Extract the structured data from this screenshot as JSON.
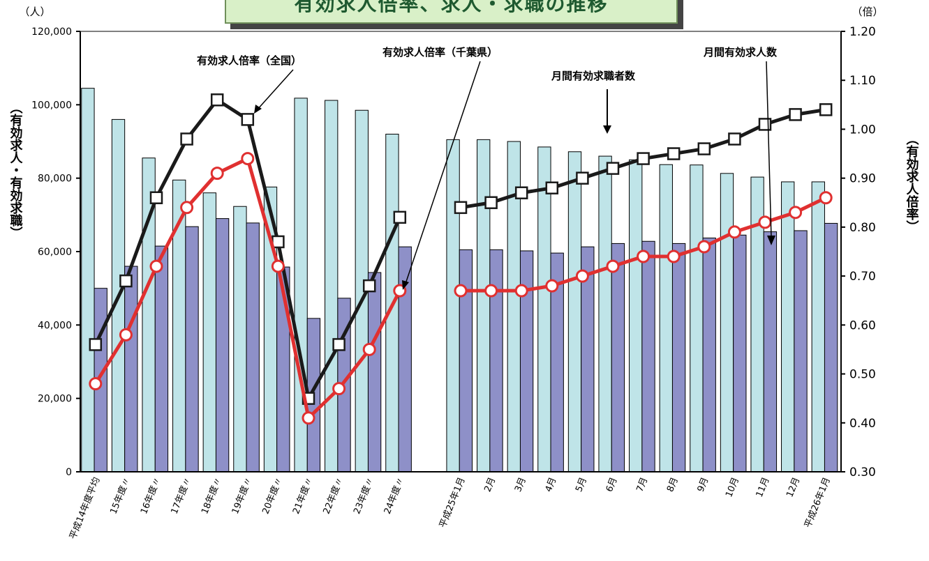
{
  "title": "有効求人倍率、求人・求職の推移",
  "left_unit": "（人）",
  "right_unit": "（倍）",
  "left_axis_title": "（有効求人・有効求職）",
  "right_axis_title": "（有効求人倍率）",
  "annotations": {
    "national": "有効求人倍率（全国）",
    "chiba": "有効求人倍率（千葉県）",
    "seekers": "月間有効求職者数",
    "openings": "月間有効求人数"
  },
  "colors": {
    "seekers_bar": "#bfe4e8",
    "openings_bar": "#8e90c8",
    "national_line": "#1a1a1a",
    "chiba_line": "#e03030"
  },
  "chart_data": {
    "type": "bar+line",
    "categories": [
      "平成14年度平均",
      "15年度〃",
      "16年度〃",
      "17年度〃",
      "18年度〃",
      "19年度〃",
      "20年度〃",
      "21年度〃",
      "22年度〃",
      "23年度〃",
      "24年度〃",
      "",
      "平成25年1月",
      "2月",
      "3月",
      "4月",
      "5月",
      "6月",
      "7月",
      "8月",
      "9月",
      "10月",
      "11月",
      "12月",
      "平成26年1月"
    ],
    "left_axis": {
      "ylim": [
        0,
        120000
      ],
      "ticks": [
        "0",
        "20,000",
        "40,000",
        "60,000",
        "80,000",
        "100,000",
        "120,000"
      ],
      "tick_values": [
        0,
        20000,
        40000,
        60000,
        80000,
        100000,
        120000
      ]
    },
    "right_axis": {
      "ylim": [
        0.3,
        1.2
      ],
      "ticks": [
        "0.30",
        "0.40",
        "0.50",
        "0.60",
        "0.70",
        "0.80",
        "0.90",
        "1.00",
        "1.10",
        "1.20"
      ],
      "tick_values": [
        0.3,
        0.4,
        0.5,
        0.6,
        0.7,
        0.8,
        0.9,
        1.0,
        1.1,
        1.2
      ]
    },
    "series": [
      {
        "name": "月間有効求職者数",
        "type": "bar",
        "axis": "left",
        "values": [
          104500,
          96000,
          85500,
          79500,
          76000,
          72300,
          77600,
          101800,
          101200,
          98500,
          92000,
          null,
          90500,
          90500,
          90000,
          88500,
          87200,
          86000,
          85000,
          83700,
          83600,
          81300,
          80300,
          79000,
          79000
        ]
      },
      {
        "name": "月間有効求人数",
        "type": "bar",
        "axis": "left",
        "values": [
          50000,
          56000,
          61500,
          66800,
          69000,
          67800,
          55800,
          41800,
          47300,
          54300,
          61300,
          null,
          60500,
          60500,
          60200,
          59600,
          61300,
          62200,
          62800,
          62200,
          63700,
          64500,
          65400,
          65700,
          67700
        ]
      },
      {
        "name": "有効求人倍率（全国）",
        "type": "line",
        "axis": "right",
        "values": [
          0.56,
          0.69,
          0.86,
          0.98,
          1.06,
          1.02,
          0.77,
          0.45,
          0.56,
          0.68,
          0.82,
          null,
          0.84,
          0.85,
          0.87,
          0.88,
          0.9,
          0.92,
          0.94,
          0.95,
          0.96,
          0.98,
          1.01,
          1.03,
          1.04
        ]
      },
      {
        "name": "有効求人倍率（千葉県）",
        "type": "line",
        "axis": "right",
        "values": [
          0.48,
          0.58,
          0.72,
          0.84,
          0.91,
          0.94,
          0.72,
          0.41,
          0.47,
          0.55,
          0.67,
          null,
          0.67,
          0.67,
          0.67,
          0.68,
          0.7,
          0.72,
          0.74,
          0.74,
          0.76,
          0.79,
          0.81,
          0.83,
          0.86
        ]
      }
    ]
  }
}
